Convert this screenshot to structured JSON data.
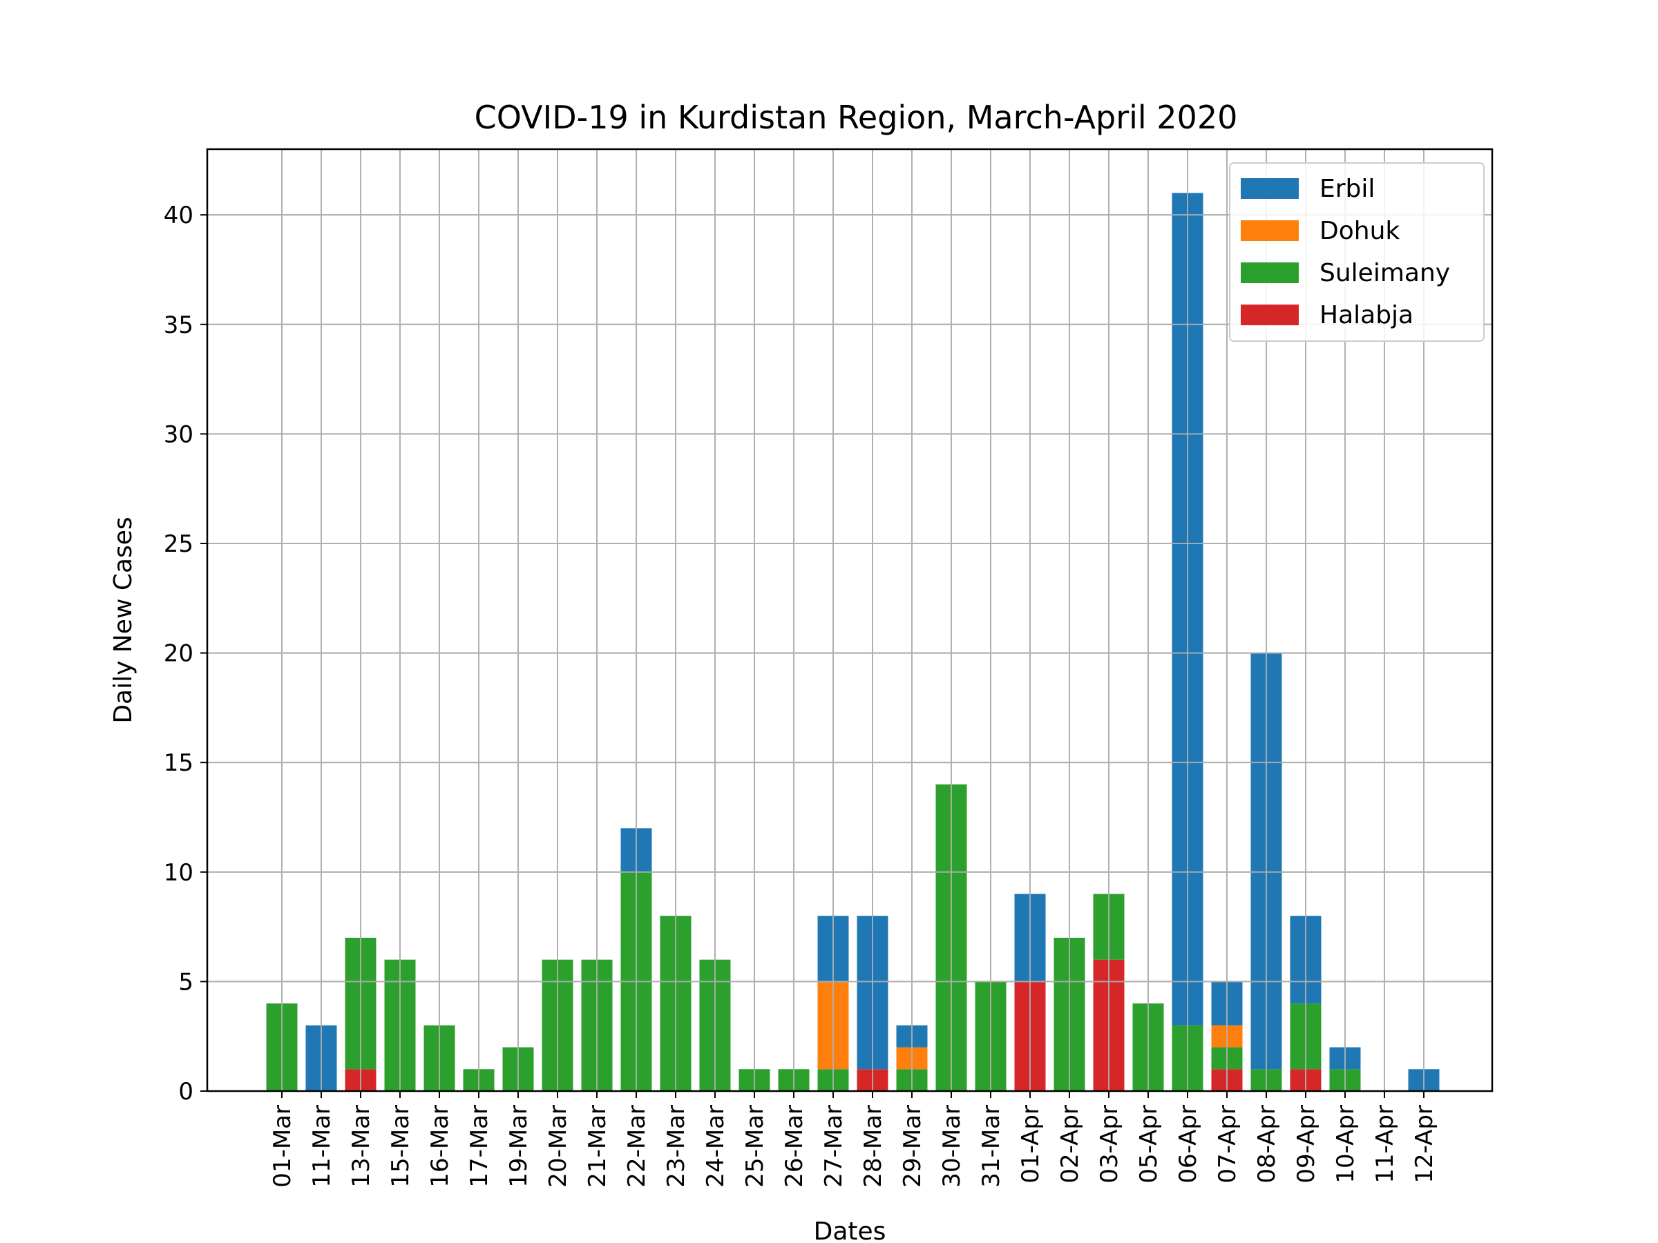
{
  "chart_data": {
    "type": "bar",
    "stacked": true,
    "title": "COVID-19 in Kurdistan Region, March-April 2020",
    "xlabel": "Dates",
    "ylabel": "Daily New Cases",
    "ylim": [
      0,
      43
    ],
    "yticks": [
      0,
      5,
      10,
      15,
      20,
      25,
      30,
      35,
      40
    ],
    "grid": true,
    "legend_position": "top-right",
    "categories": [
      "01-Mar",
      "11-Mar",
      "13-Mar",
      "15-Mar",
      "16-Mar",
      "17-Mar",
      "19-Mar",
      "20-Mar",
      "21-Mar",
      "22-Mar",
      "23-Mar",
      "24-Mar",
      "25-Mar",
      "26-Mar",
      "27-Mar",
      "28-Mar",
      "29-Mar",
      "30-Mar",
      "31-Mar",
      "01-Apr",
      "02-Apr",
      "03-Apr",
      "05-Apr",
      "06-Apr",
      "07-Apr",
      "08-Apr",
      "09-Apr",
      "10-Apr",
      "11-Apr",
      "12-Apr"
    ],
    "stack_order": [
      "Halabja",
      "Suleimany",
      "Dohuk",
      "Erbil"
    ],
    "series": [
      {
        "name": "Erbil",
        "color": "#1f77b4",
        "values": [
          0,
          3,
          0,
          0,
          0,
          0,
          0,
          0,
          0,
          2,
          0,
          0,
          0,
          0,
          3,
          7,
          1,
          0,
          0,
          4,
          0,
          0,
          0,
          38,
          2,
          19,
          4,
          1,
          0,
          1
        ]
      },
      {
        "name": "Dohuk",
        "color": "#ff7f0e",
        "values": [
          0,
          0,
          0,
          0,
          0,
          0,
          0,
          0,
          0,
          0,
          0,
          0,
          0,
          0,
          4,
          0,
          1,
          0,
          0,
          0,
          0,
          0,
          0,
          0,
          1,
          0,
          0,
          0,
          0,
          0
        ]
      },
      {
        "name": "Suleimany",
        "color": "#2ca02c",
        "values": [
          4,
          0,
          6,
          6,
          3,
          1,
          2,
          6,
          6,
          10,
          8,
          6,
          1,
          1,
          1,
          0,
          1,
          14,
          5,
          0,
          7,
          3,
          4,
          3,
          1,
          1,
          3,
          1,
          0,
          0
        ]
      },
      {
        "name": "Halabja",
        "color": "#d62728",
        "values": [
          0,
          0,
          1,
          0,
          0,
          0,
          0,
          0,
          0,
          0,
          0,
          0,
          0,
          0,
          0,
          1,
          0,
          0,
          0,
          5,
          0,
          6,
          0,
          0,
          1,
          0,
          1,
          0,
          0,
          0
        ]
      }
    ]
  }
}
